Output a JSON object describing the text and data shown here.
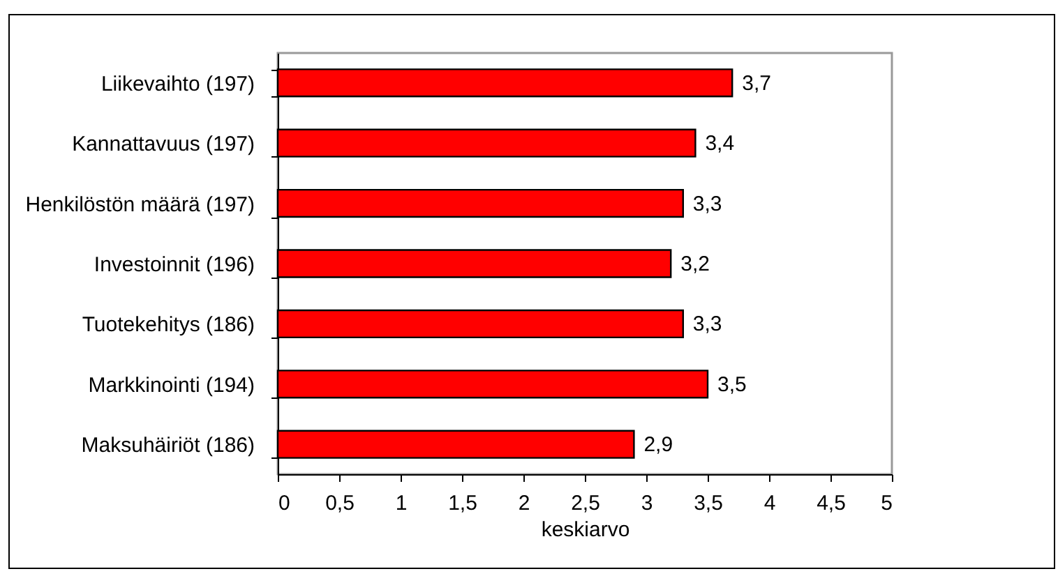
{
  "chart_data": {
    "type": "bar",
    "orientation": "horizontal",
    "xlabel": "keskiarvo",
    "categories": [
      "Liikevaihto (197)",
      "Kannattavuus (197)",
      "Henkilöstön määrä (197)",
      "Investoinnit (196)",
      "Tuotekehitys (186)",
      "Markkinointi (194)",
      "Maksuhäiriöt (186)"
    ],
    "values": [
      3.7,
      3.4,
      3.3,
      3.2,
      3.3,
      3.5,
      2.9
    ],
    "value_labels": [
      "3,7",
      "3,4",
      "3,3",
      "3,2",
      "3,3",
      "3,5",
      "2,9"
    ],
    "color": "#ff0000",
    "xlim": [
      0,
      5
    ],
    "xticks": [
      0,
      {
        "value": 0.5,
        "label": "0,5"
      },
      1,
      {
        "value": 1.5,
        "label": "1,5"
      },
      2,
      {
        "value": 2.5,
        "label": "2,5"
      },
      3,
      {
        "value": 3.5,
        "label": "3,5"
      },
      4,
      {
        "value": 4.5,
        "label": "4,5"
      },
      5
    ],
    "grid": false
  }
}
